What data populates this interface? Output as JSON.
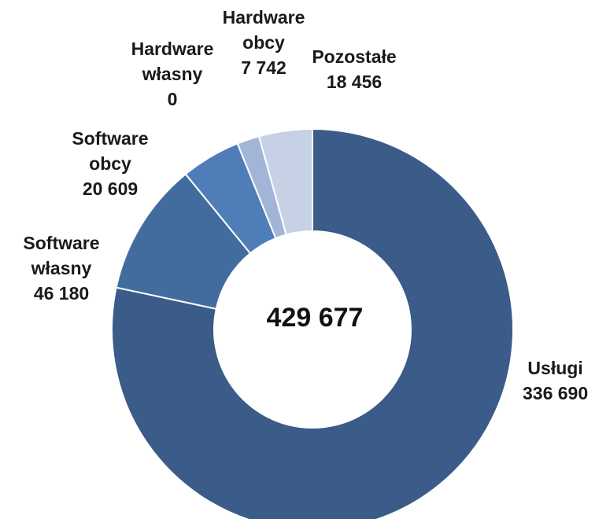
{
  "chart_data": {
    "type": "pie",
    "total_label": "429 677",
    "slices": [
      {
        "name": "Usługi",
        "value": 336690,
        "value_label": "336 690",
        "color": "#3b5b89"
      },
      {
        "name": "Software własny",
        "value": 46180,
        "value_label": "46 180",
        "color": "#436c9e"
      },
      {
        "name": "Software obcy",
        "value": 20609,
        "value_label": "20 609",
        "color": "#4f7db8"
      },
      {
        "name": "Hardware własny",
        "value": 0,
        "value_label": "0",
        "color": "#6a8fc6"
      },
      {
        "name": "Hardware obcy",
        "value": 7742,
        "value_label": "7 742",
        "color": "#a3b5d6"
      },
      {
        "name": "Pozostałe",
        "value": 18456,
        "value_label": "18 456",
        "color": "#c6d1e6"
      }
    ],
    "labels": {
      "uslugi": {
        "l1": "Usługi",
        "l2": "336 690"
      },
      "software_wlasny": {
        "l1": "Software",
        "l2": "własny",
        "l3": "46 180"
      },
      "software_obcy": {
        "l1": "Software",
        "l2": "obcy",
        "l3": "20 609"
      },
      "hardware_wlasny": {
        "l1": "Hardware",
        "l2": "własny",
        "l3": "0"
      },
      "hardware_obcy": {
        "l1": "Hardware",
        "l2": "obcy",
        "l3": "7 742"
      },
      "pozostale": {
        "l1": "Pozostałe",
        "l2": "18 456"
      }
    }
  }
}
